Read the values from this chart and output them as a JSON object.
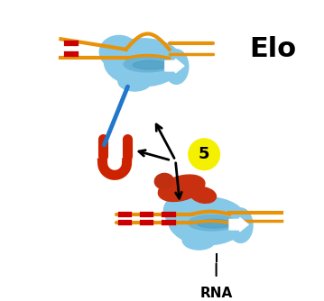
{
  "title": "Elo",
  "title_fontsize": 22,
  "title_fontweight": "bold",
  "rna_label": "RNA",
  "number_label": "5",
  "bg_color": "#ffffff",
  "blue_light": "#85c8e8",
  "blue_mid": "#6ab4d8",
  "blue_dark": "#4a9ac0",
  "orange": "#e8920a",
  "red_protein": "#cc2200",
  "red_nusa": "#c83000",
  "yellow": "#f5f000",
  "white": "#ffffff",
  "black": "#000000",
  "red_stripe": "#cc0000",
  "blue_line": "#2277cc"
}
